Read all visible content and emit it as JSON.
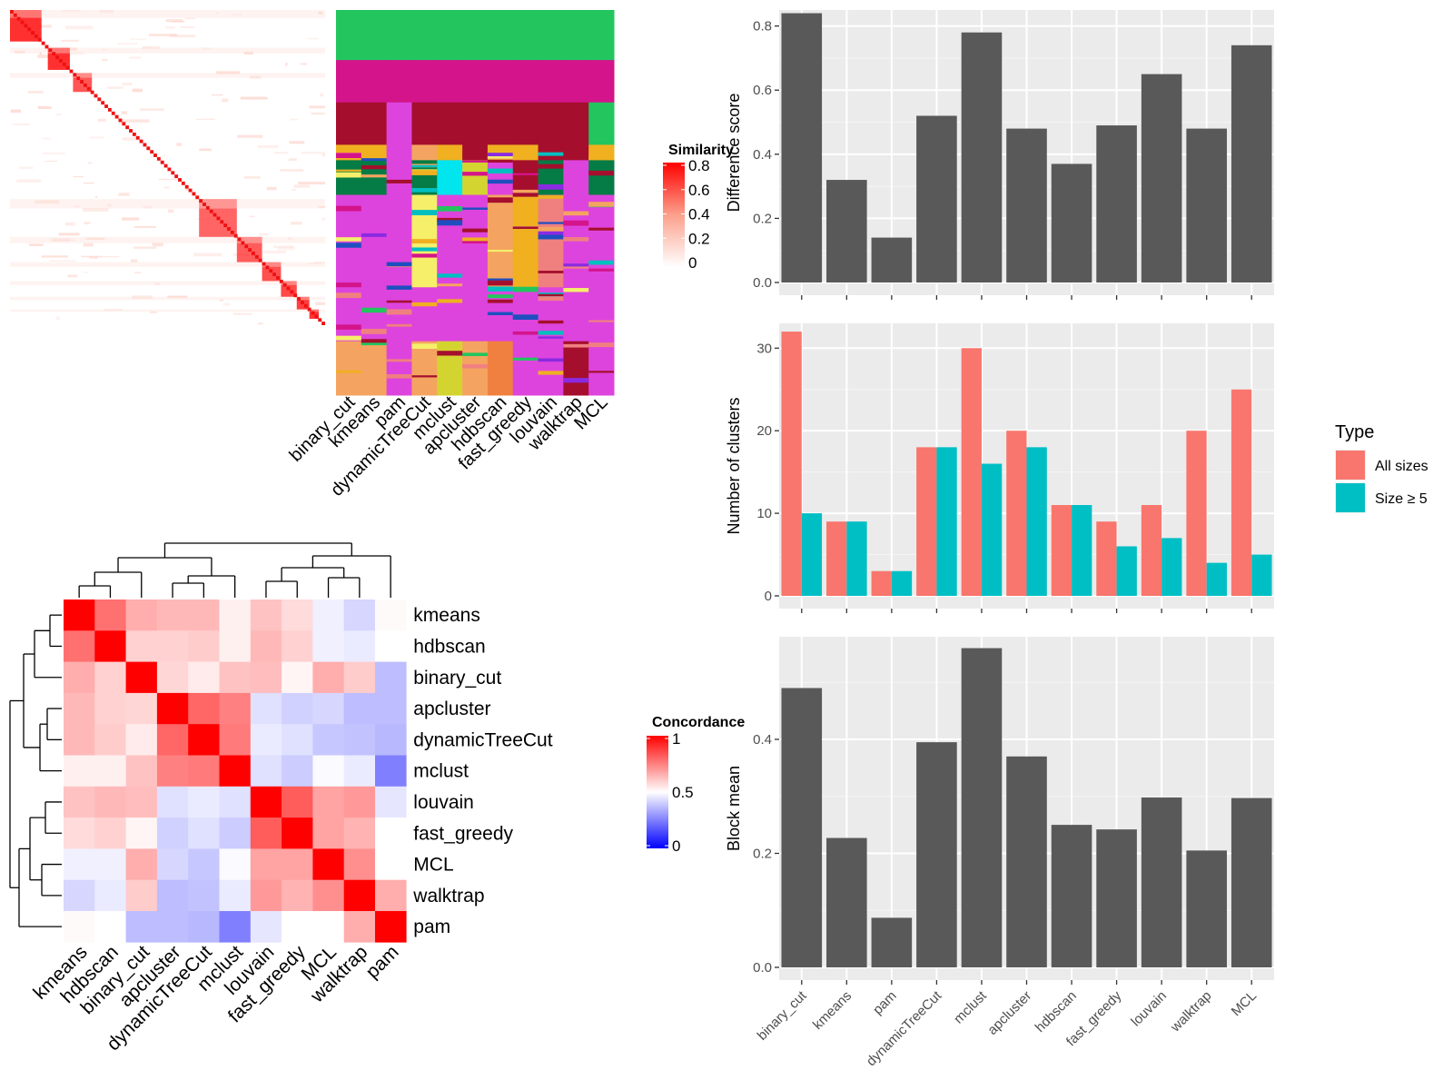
{
  "methods_ordered": [
    "binary_cut",
    "kmeans",
    "pam",
    "dynamicTreeCut",
    "mclust",
    "apcluster",
    "hdbscan",
    "fast_greedy",
    "louvain",
    "walktrap",
    "MCL"
  ],
  "similarity_legend": {
    "title": "Similarity",
    "ticks": [
      "0.8",
      "0.6",
      "0.4",
      "0.2",
      "0"
    ]
  },
  "concordance_legend": {
    "title": "Concordance",
    "ticks": [
      "1",
      "0.5",
      "0"
    ]
  },
  "concordance_methods": [
    "kmeans",
    "hdbscan",
    "binary_cut",
    "apcluster",
    "dynamicTreeCut",
    "mclust",
    "louvain",
    "fast_greedy",
    "MCL",
    "walktrap",
    "pam"
  ],
  "chart_data": [
    {
      "type": "heatmap",
      "name": "similarity-matrix",
      "description_values": "block-diagonal similarity heatmap",
      "legend_title": "Similarity",
      "color_range": [
        0,
        0.8
      ],
      "blocks": [
        {
          "start": 0,
          "size": 0.1,
          "value": 0.85
        },
        {
          "start": 0.12,
          "size": 0.07,
          "value": 0.9
        },
        {
          "start": 0.2,
          "size": 0.06,
          "value": 0.6
        },
        {
          "start": 0.6,
          "size": 0.12,
          "value": 0.5
        },
        {
          "start": 0.72,
          "size": 0.08,
          "value": 0.55
        },
        {
          "start": 0.8,
          "size": 0.06,
          "value": 0.65
        },
        {
          "start": 0.86,
          "size": 0.05,
          "value": 0.7
        },
        {
          "start": 0.91,
          "size": 0.04,
          "value": 0.75
        },
        {
          "start": 0.95,
          "size": 0.03,
          "value": 0.8
        }
      ]
    },
    {
      "type": "heatmap",
      "name": "cluster-assignment-matrix",
      "columns": [
        "binary_cut",
        "kmeans",
        "pam",
        "dynamicTreeCut",
        "mclust",
        "apcluster",
        "hdbscan",
        "fast_greedy",
        "louvain",
        "walktrap",
        "MCL"
      ]
    },
    {
      "type": "heatmap",
      "name": "concordance-matrix",
      "legend_title": "Concordance",
      "color_range": [
        0,
        1
      ],
      "rows": [
        "kmeans",
        "hdbscan",
        "binary_cut",
        "apcluster",
        "dynamicTreeCut",
        "mclust",
        "louvain",
        "fast_greedy",
        "MCL",
        "walktrap",
        "pam"
      ],
      "columns": [
        "kmeans",
        "hdbscan",
        "binary_cut",
        "apcluster",
        "dynamicTreeCut",
        "mclust",
        "louvain",
        "fast_greedy",
        "MCL",
        "walktrap",
        "pam"
      ],
      "values": [
        [
          1.0,
          0.78,
          0.66,
          0.64,
          0.64,
          0.53,
          0.62,
          0.57,
          0.47,
          0.42,
          0.51
        ],
        [
          0.78,
          1.0,
          0.59,
          0.59,
          0.6,
          0.53,
          0.64,
          0.59,
          0.47,
          0.46,
          0.5
        ],
        [
          0.66,
          0.59,
          1.0,
          0.58,
          0.54,
          0.62,
          0.63,
          0.52,
          0.66,
          0.6,
          0.37
        ],
        [
          0.64,
          0.59,
          0.58,
          1.0,
          0.8,
          0.75,
          0.44,
          0.41,
          0.42,
          0.37,
          0.37
        ],
        [
          0.64,
          0.6,
          0.54,
          0.8,
          1.0,
          0.76,
          0.46,
          0.44,
          0.39,
          0.38,
          0.36
        ],
        [
          0.53,
          0.53,
          0.62,
          0.75,
          0.76,
          1.0,
          0.44,
          0.4,
          0.49,
          0.46,
          0.25
        ],
        [
          0.62,
          0.64,
          0.63,
          0.44,
          0.46,
          0.44,
          1.0,
          0.82,
          0.68,
          0.7,
          0.45
        ],
        [
          0.57,
          0.59,
          0.52,
          0.41,
          0.44,
          0.4,
          0.82,
          1.0,
          0.68,
          0.65,
          0.5
        ],
        [
          0.47,
          0.47,
          0.66,
          0.42,
          0.39,
          0.49,
          0.68,
          0.68,
          1.0,
          0.72,
          0.5
        ],
        [
          0.42,
          0.46,
          0.6,
          0.37,
          0.38,
          0.46,
          0.7,
          0.65,
          0.72,
          1.0,
          0.66
        ],
        [
          0.51,
          0.5,
          0.37,
          0.37,
          0.36,
          0.25,
          0.45,
          0.5,
          0.5,
          0.66,
          1.0
        ]
      ]
    },
    {
      "type": "bar",
      "name": "difference-score",
      "categories": [
        "binary_cut",
        "kmeans",
        "pam",
        "dynamicTreeCut",
        "mclust",
        "apcluster",
        "hdbscan",
        "fast_greedy",
        "louvain",
        "walktrap",
        "MCL"
      ],
      "values": [
        0.84,
        0.32,
        0.14,
        0.52,
        0.78,
        0.48,
        0.37,
        0.49,
        0.65,
        0.48,
        0.74
      ],
      "ylabel": "Difference score",
      "ylim": [
        0,
        0.85
      ],
      "yticks": [
        0.0,
        0.2,
        0.4,
        0.6,
        0.8
      ],
      "ytick_labels": [
        "0.0",
        "0.2",
        "0.4",
        "0.6",
        "0.8"
      ],
      "grid": true
    },
    {
      "type": "bar",
      "name": "number-of-clusters",
      "categories": [
        "binary_cut",
        "kmeans",
        "pam",
        "dynamicTreeCut",
        "mclust",
        "apcluster",
        "hdbscan",
        "fast_greedy",
        "louvain",
        "walktrap",
        "MCL"
      ],
      "series": [
        {
          "name": "All sizes",
          "color": "#F8766D",
          "values": [
            32,
            9,
            3,
            18,
            30,
            20,
            11,
            9,
            11,
            20,
            25
          ]
        },
        {
          "name": "Size ≥ 5",
          "color": "#00BFC4",
          "values": [
            10,
            9,
            3,
            18,
            16,
            18,
            11,
            6,
            7,
            4,
            5
          ]
        }
      ],
      "ylabel": "Number of clusters",
      "ylim": [
        0,
        33
      ],
      "yticks": [
        0,
        10,
        20,
        30
      ],
      "ytick_labels": [
        "0",
        "10",
        "20",
        "30"
      ],
      "legend_title": "Type",
      "legend_position": "right",
      "grid": true
    },
    {
      "type": "bar",
      "name": "block-mean",
      "categories": [
        "binary_cut",
        "kmeans",
        "pam",
        "dynamicTreeCut",
        "mclust",
        "apcluster",
        "hdbscan",
        "fast_greedy",
        "louvain",
        "walktrap",
        "MCL"
      ],
      "values": [
        0.49,
        0.227,
        0.087,
        0.395,
        0.56,
        0.37,
        0.25,
        0.242,
        0.298,
        0.205,
        0.297
      ],
      "ylabel": "Block mean",
      "ylim": [
        0,
        0.58
      ],
      "yticks": [
        0.0,
        0.2,
        0.4
      ],
      "ytick_labels": [
        "0.0",
        "0.2",
        "0.4"
      ],
      "grid": true
    }
  ]
}
